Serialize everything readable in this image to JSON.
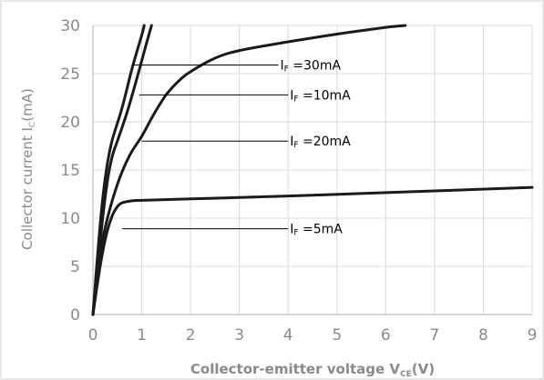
{
  "chart_data": {
    "type": "line",
    "xlabel": {
      "main": "Collector-emitter voltage V",
      "sub": "CE",
      "tail": "(V)"
    },
    "ylabel": {
      "main": "Collector current I",
      "sub": "C",
      "tail": "(mA)"
    },
    "xlim": [
      0,
      9
    ],
    "ylim": [
      0,
      30
    ],
    "xticks": [
      "0",
      "1",
      "2",
      "3",
      "4",
      "5",
      "6",
      "7",
      "8",
      "9"
    ],
    "yticks": [
      "0",
      "5",
      "10",
      "15",
      "20",
      "25",
      "30"
    ],
    "grid": true,
    "colors": {
      "line": "#1a1a1a",
      "grid": "#d9d9d9",
      "axis": "#bfbfbf",
      "text": "#8a8a8a",
      "annotation": "#000000"
    },
    "series": [
      {
        "label": "IF=5mA",
        "points": [
          [
            0,
            0
          ],
          [
            0.1,
            3.5
          ],
          [
            0.2,
            6.5
          ],
          [
            0.3,
            8.8
          ],
          [
            0.4,
            10.3
          ],
          [
            0.5,
            11.2
          ],
          [
            0.6,
            11.6
          ],
          [
            0.8,
            11.8
          ],
          [
            1.0,
            11.85
          ],
          [
            2,
            12.0
          ],
          [
            4,
            12.3
          ],
          [
            6,
            12.65
          ],
          [
            9,
            13.2
          ]
        ]
      },
      {
        "label": "IF=20mA",
        "points": [
          [
            0,
            0
          ],
          [
            0.1,
            4.5
          ],
          [
            0.25,
            9
          ],
          [
            0.5,
            13.5
          ],
          [
            0.75,
            16.5
          ],
          [
            1,
            18.5
          ],
          [
            1.25,
            20.8
          ],
          [
            1.5,
            22.8
          ],
          [
            1.75,
            24.2
          ],
          [
            2,
            25.2
          ],
          [
            2.5,
            26.6
          ],
          [
            3,
            27.4
          ],
          [
            4,
            28.3
          ],
          [
            5,
            29.1
          ],
          [
            6,
            29.8
          ],
          [
            6.4,
            30
          ]
        ]
      },
      {
        "label": "IF=10mA",
        "points": [
          [
            0,
            0
          ],
          [
            0.1,
            5
          ],
          [
            0.2,
            10
          ],
          [
            0.3,
            14
          ],
          [
            0.4,
            16.5
          ],
          [
            0.5,
            18
          ],
          [
            0.7,
            21
          ],
          [
            0.9,
            24.5
          ],
          [
            1.1,
            28.2
          ],
          [
            1.2,
            30
          ]
        ]
      },
      {
        "label": "IF=30mA",
        "points": [
          [
            0,
            0
          ],
          [
            0.1,
            6.5
          ],
          [
            0.2,
            12
          ],
          [
            0.3,
            15.8
          ],
          [
            0.4,
            18.2
          ],
          [
            0.6,
            21.5
          ],
          [
            0.8,
            25.5
          ],
          [
            1.0,
            29
          ],
          [
            1.05,
            30
          ]
        ]
      }
    ],
    "annotations": [
      {
        "main": "I",
        "sub": "F",
        "rest": " =30mA",
        "line_from": [
          0.8,
          25.9
        ],
        "line_to": [
          3.8,
          25.9
        ]
      },
      {
        "main": "I",
        "sub": "F",
        "rest": " =10mA",
        "line_from": [
          0.95,
          22.8
        ],
        "line_to": [
          4.0,
          22.8
        ]
      },
      {
        "main": "I",
        "sub": "F",
        "rest": " =20mA",
        "line_from": [
          1.0,
          18.0
        ],
        "line_to": [
          4.0,
          18.0
        ]
      },
      {
        "main": "I",
        "sub": "F",
        "rest": " =5mA",
        "line_from": [
          0.6,
          8.9
        ],
        "line_to": [
          4.0,
          8.9
        ]
      }
    ]
  }
}
